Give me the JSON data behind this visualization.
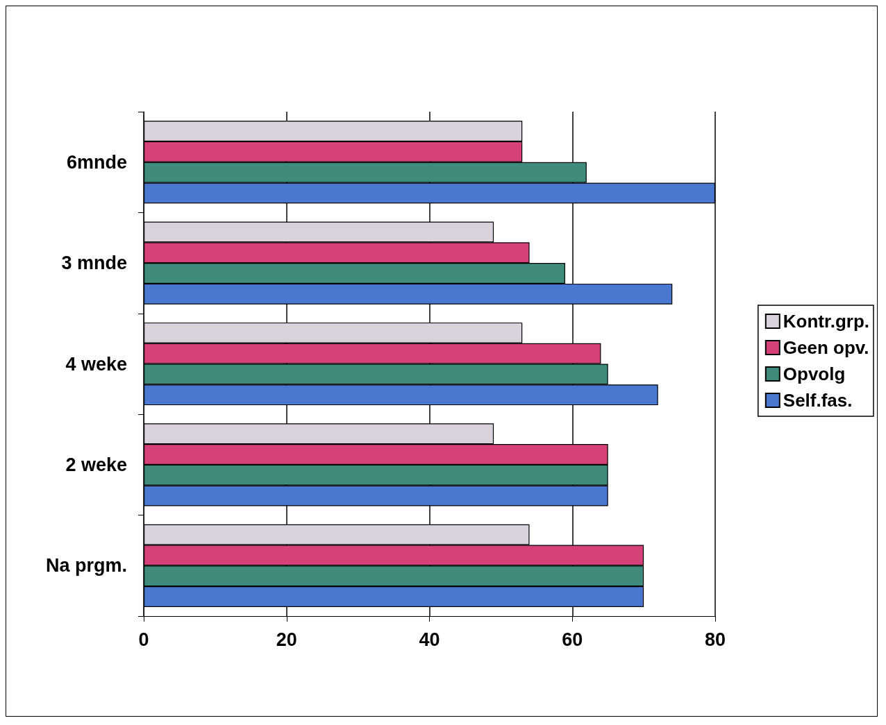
{
  "chart_data": {
    "type": "bar",
    "orientation": "horizontal",
    "categories": [
      "6mnde",
      "3 mnde",
      "4 weke",
      "2 weke",
      "Na prgm."
    ],
    "series": [
      {
        "name": "Kontr.grp.",
        "color": "#d9d2dc",
        "values": [
          53,
          49,
          53,
          49,
          54
        ]
      },
      {
        "name": "Geen opv.",
        "color": "#d6417a",
        "values": [
          53,
          54,
          64,
          65,
          70
        ]
      },
      {
        "name": "Opvolg",
        "color": "#3f8c7c",
        "values": [
          62,
          59,
          65,
          65,
          70
        ]
      },
      {
        "name": "Self.fas.",
        "color": "#4a78d0",
        "values": [
          80,
          74,
          72,
          65,
          70
        ]
      }
    ],
    "xlim": [
      0,
      80
    ],
    "xticks": [
      0,
      20,
      40,
      60,
      80
    ],
    "grid": "x",
    "legend": "right"
  }
}
